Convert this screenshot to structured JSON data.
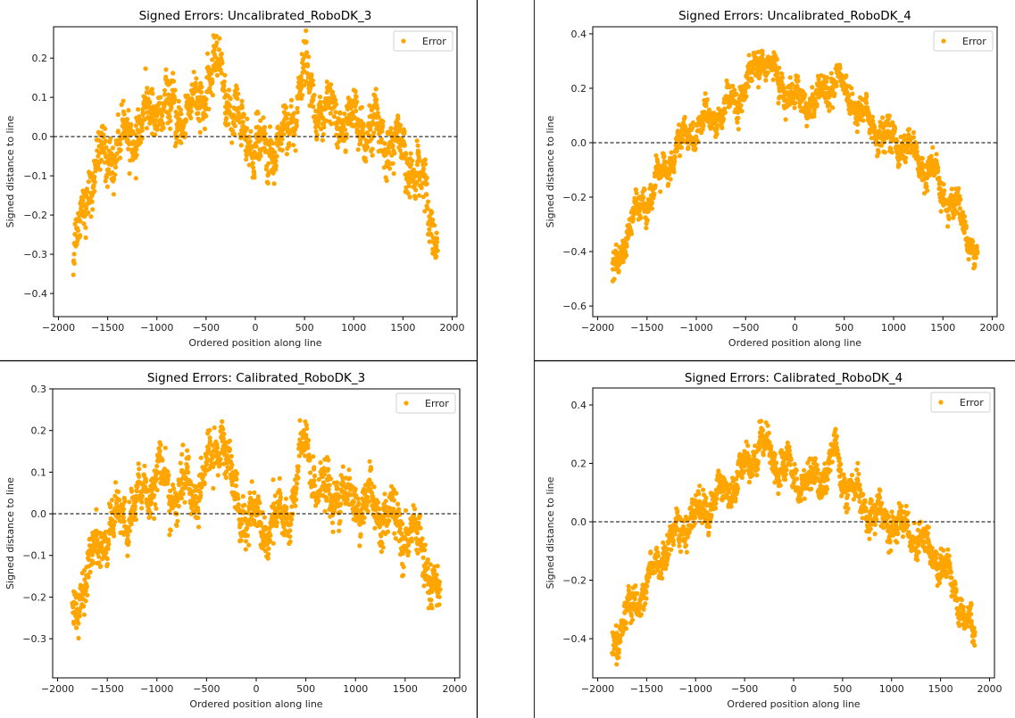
{
  "chart_data": [
    {
      "type": "scatter",
      "title": "Signed Errors: Uncalibrated_RoboDK_3",
      "xlabel": "Ordered position along line",
      "ylabel": "Signed distance to line",
      "xlim": [
        -2050,
        2050
      ],
      "ylim": [
        -0.459,
        0.28
      ],
      "xticks": [
        -2000,
        -1500,
        -1000,
        -500,
        0,
        500,
        1000,
        1500,
        2000
      ],
      "xtick_labels": [
        "−2000",
        "−1500",
        "−1000",
        "−500",
        "0",
        "500",
        "1000",
        "1500",
        "2000"
      ],
      "yticks": [
        -0.4,
        -0.3,
        -0.2,
        -0.1,
        0.0,
        0.1,
        0.2
      ],
      "ytick_labels": [
        "−0.4",
        "−0.3",
        "−0.2",
        "−0.1",
        "0.0",
        "0.1",
        "0.2"
      ],
      "reference_line": 0.0,
      "legend": {
        "label": "Error",
        "position": "top-right"
      },
      "series": [
        {
          "name": "Error",
          "color": "#FFA500",
          "trend_x": [
            -1850,
            -1800,
            -1750,
            -1700,
            -1650,
            -1600,
            -1500,
            -1400,
            -1300,
            -1200,
            -1100,
            -1000,
            -900,
            -800,
            -700,
            -600,
            -500,
            -400,
            -350,
            -300,
            -250,
            -200,
            -100,
            0,
            100,
            200,
            300,
            400,
            450,
            500,
            550,
            600,
            700,
            800,
            900,
            1000,
            1100,
            1200,
            1300,
            1400,
            1500,
            1600,
            1650,
            1700,
            1750,
            1800,
            1850
          ],
          "trend_y": [
            -0.33,
            -0.25,
            -0.18,
            -0.13,
            -0.1,
            -0.07,
            -0.05,
            -0.02,
            0.0,
            0.01,
            0.05,
            0.08,
            0.07,
            0.05,
            0.06,
            0.08,
            0.12,
            0.17,
            0.19,
            0.12,
            0.06,
            0.04,
            0.01,
            -0.03,
            -0.04,
            -0.02,
            0.0,
            0.06,
            0.14,
            0.17,
            0.13,
            0.08,
            0.05,
            0.06,
            0.04,
            0.03,
            0.02,
            0.02,
            0.0,
            -0.02,
            -0.05,
            -0.08,
            -0.1,
            -0.13,
            -0.15,
            -0.22,
            -0.25
          ],
          "spread": 0.05,
          "count": 1500
        }
      ]
    },
    {
      "type": "scatter",
      "title": "Signed Errors: Uncalibrated_RoboDK_4",
      "xlabel": "Ordered position along line",
      "ylabel": "Signed distance to line",
      "xlim": [
        -2050,
        2050
      ],
      "ylim": [
        -0.639,
        0.426
      ],
      "xticks": [
        -2000,
        -1500,
        -1000,
        -500,
        0,
        500,
        1000,
        1500,
        2000
      ],
      "xtick_labels": [
        "−2000",
        "−1500",
        "−1000",
        "−500",
        "0",
        "500",
        "1000",
        "1500",
        "2000"
      ],
      "yticks": [
        -0.6,
        -0.4,
        -0.2,
        0.0,
        0.2,
        0.4
      ],
      "ytick_labels": [
        "−0.6",
        "−0.4",
        "−0.2",
        "0.0",
        "0.2",
        "0.4"
      ],
      "reference_line": 0.0,
      "legend": {
        "label": "Error",
        "position": "top-right"
      },
      "series": [
        {
          "name": "Error",
          "color": "#FFA500",
          "trend_x": [
            -1850,
            -1800,
            -1700,
            -1600,
            -1500,
            -1400,
            -1300,
            -1200,
            -1100,
            -1000,
            -900,
            -800,
            -700,
            -600,
            -500,
            -400,
            -330,
            -250,
            -150,
            -50,
            50,
            150,
            250,
            350,
            420,
            500,
            600,
            700,
            800,
            900,
            1000,
            1100,
            1200,
            1300,
            1400,
            1500,
            1600,
            1700,
            1750,
            1800,
            1850
          ],
          "trend_y": [
            -0.5,
            -0.45,
            -0.33,
            -0.25,
            -0.2,
            -0.15,
            -0.1,
            -0.02,
            0.02,
            0.05,
            0.08,
            0.1,
            0.12,
            0.15,
            0.2,
            0.26,
            0.33,
            0.27,
            0.22,
            0.18,
            0.16,
            0.15,
            0.17,
            0.2,
            0.27,
            0.18,
            0.15,
            0.1,
            0.05,
            0.03,
            0.01,
            0.0,
            -0.05,
            -0.08,
            -0.12,
            -0.18,
            -0.23,
            -0.28,
            -0.33,
            -0.38,
            -0.43
          ],
          "spread": 0.045,
          "count": 1500
        }
      ]
    },
    {
      "type": "scatter",
      "title": "Signed Errors: Calibrated_RoboDK_3",
      "xlabel": "Ordered position along line",
      "ylabel": "Signed distance to line",
      "xlim": [
        -2050,
        2050
      ],
      "ylim": [
        -0.394,
        0.3
      ],
      "xticks": [
        -2000,
        -1500,
        -1000,
        -500,
        0,
        500,
        1000,
        1500,
        2000
      ],
      "xtick_labels": [
        "−2000",
        "−1500",
        "−1000",
        "−500",
        "0",
        "500",
        "1000",
        "1500",
        "2000"
      ],
      "yticks": [
        -0.3,
        -0.2,
        -0.1,
        0.0,
        0.1,
        0.2,
        0.3
      ],
      "ytick_labels": [
        "−0.3",
        "−0.2",
        "−0.1",
        "0.0",
        "0.1",
        "0.2",
        "0.3"
      ],
      "reference_line": 0.0,
      "legend": {
        "label": "Error",
        "position": "top-right"
      },
      "series": [
        {
          "name": "Error",
          "color": "#FFA500",
          "trend_x": [
            -1850,
            -1800,
            -1750,
            -1700,
            -1650,
            -1600,
            -1500,
            -1400,
            -1300,
            -1200,
            -1100,
            -1000,
            -900,
            -800,
            -700,
            -600,
            -500,
            -400,
            -350,
            -300,
            -250,
            -200,
            -100,
            0,
            100,
            200,
            300,
            400,
            450,
            500,
            550,
            600,
            700,
            800,
            900,
            1000,
            1100,
            1200,
            1300,
            1400,
            1500,
            1600,
            1650,
            1700,
            1750,
            1800,
            1850
          ],
          "trend_y": [
            -0.26,
            -0.21,
            -0.17,
            -0.14,
            -0.12,
            -0.08,
            -0.04,
            -0.02,
            0.0,
            0.02,
            0.06,
            0.1,
            0.06,
            0.05,
            0.06,
            0.05,
            0.1,
            0.16,
            0.2,
            0.14,
            0.07,
            0.03,
            0.0,
            -0.02,
            -0.03,
            -0.02,
            0.0,
            0.05,
            0.13,
            0.17,
            0.13,
            0.07,
            0.04,
            0.06,
            0.02,
            0.04,
            0.02,
            0.01,
            0.0,
            -0.02,
            -0.04,
            -0.05,
            -0.07,
            -0.1,
            -0.14,
            -0.18,
            -0.22
          ],
          "spread": 0.045,
          "count": 1500
        }
      ]
    },
    {
      "type": "scatter",
      "title": "Signed Errors: Calibrated_RoboDK_4",
      "xlabel": "Ordered position along line",
      "ylabel": "Signed distance to line",
      "xlim": [
        -2050,
        2050
      ],
      "ylim": [
        -0.534,
        0.458
      ],
      "xticks": [
        -2000,
        -1500,
        -1000,
        -500,
        0,
        500,
        1000,
        1500,
        2000
      ],
      "xtick_labels": [
        "−2000",
        "−1500",
        "−1000",
        "−500",
        "0",
        "500",
        "1000",
        "1500",
        "2000"
      ],
      "yticks": [
        -0.4,
        -0.2,
        0.0,
        0.2,
        0.4
      ],
      "ytick_labels": [
        "−0.4",
        "−0.2",
        "0.0",
        "0.2",
        "0.4"
      ],
      "reference_line": 0.0,
      "legend": {
        "label": "Error",
        "position": "top-right"
      },
      "series": [
        {
          "name": "Error",
          "color": "#FFA500",
          "trend_x": [
            -1850,
            -1800,
            -1700,
            -1600,
            -1500,
            -1400,
            -1300,
            -1200,
            -1100,
            -1000,
            -900,
            -800,
            -700,
            -600,
            -500,
            -400,
            -350,
            -250,
            -150,
            -50,
            50,
            150,
            250,
            350,
            420,
            500,
            600,
            700,
            800,
            900,
            1000,
            1100,
            1200,
            1300,
            1400,
            1500,
            1600,
            1700,
            1750,
            1800,
            1850
          ],
          "trend_y": [
            -0.42,
            -0.38,
            -0.33,
            -0.26,
            -0.22,
            -0.15,
            -0.08,
            -0.05,
            0.0,
            0.02,
            0.05,
            0.08,
            0.1,
            0.13,
            0.18,
            0.23,
            0.28,
            0.24,
            0.2,
            0.17,
            0.15,
            0.13,
            0.15,
            0.18,
            0.24,
            0.15,
            0.1,
            0.06,
            0.04,
            0.01,
            0.0,
            -0.02,
            -0.04,
            -0.06,
            -0.1,
            -0.15,
            -0.2,
            -0.27,
            -0.32,
            -0.36,
            -0.4
          ],
          "spread": 0.045,
          "count": 1500
        }
      ]
    }
  ]
}
